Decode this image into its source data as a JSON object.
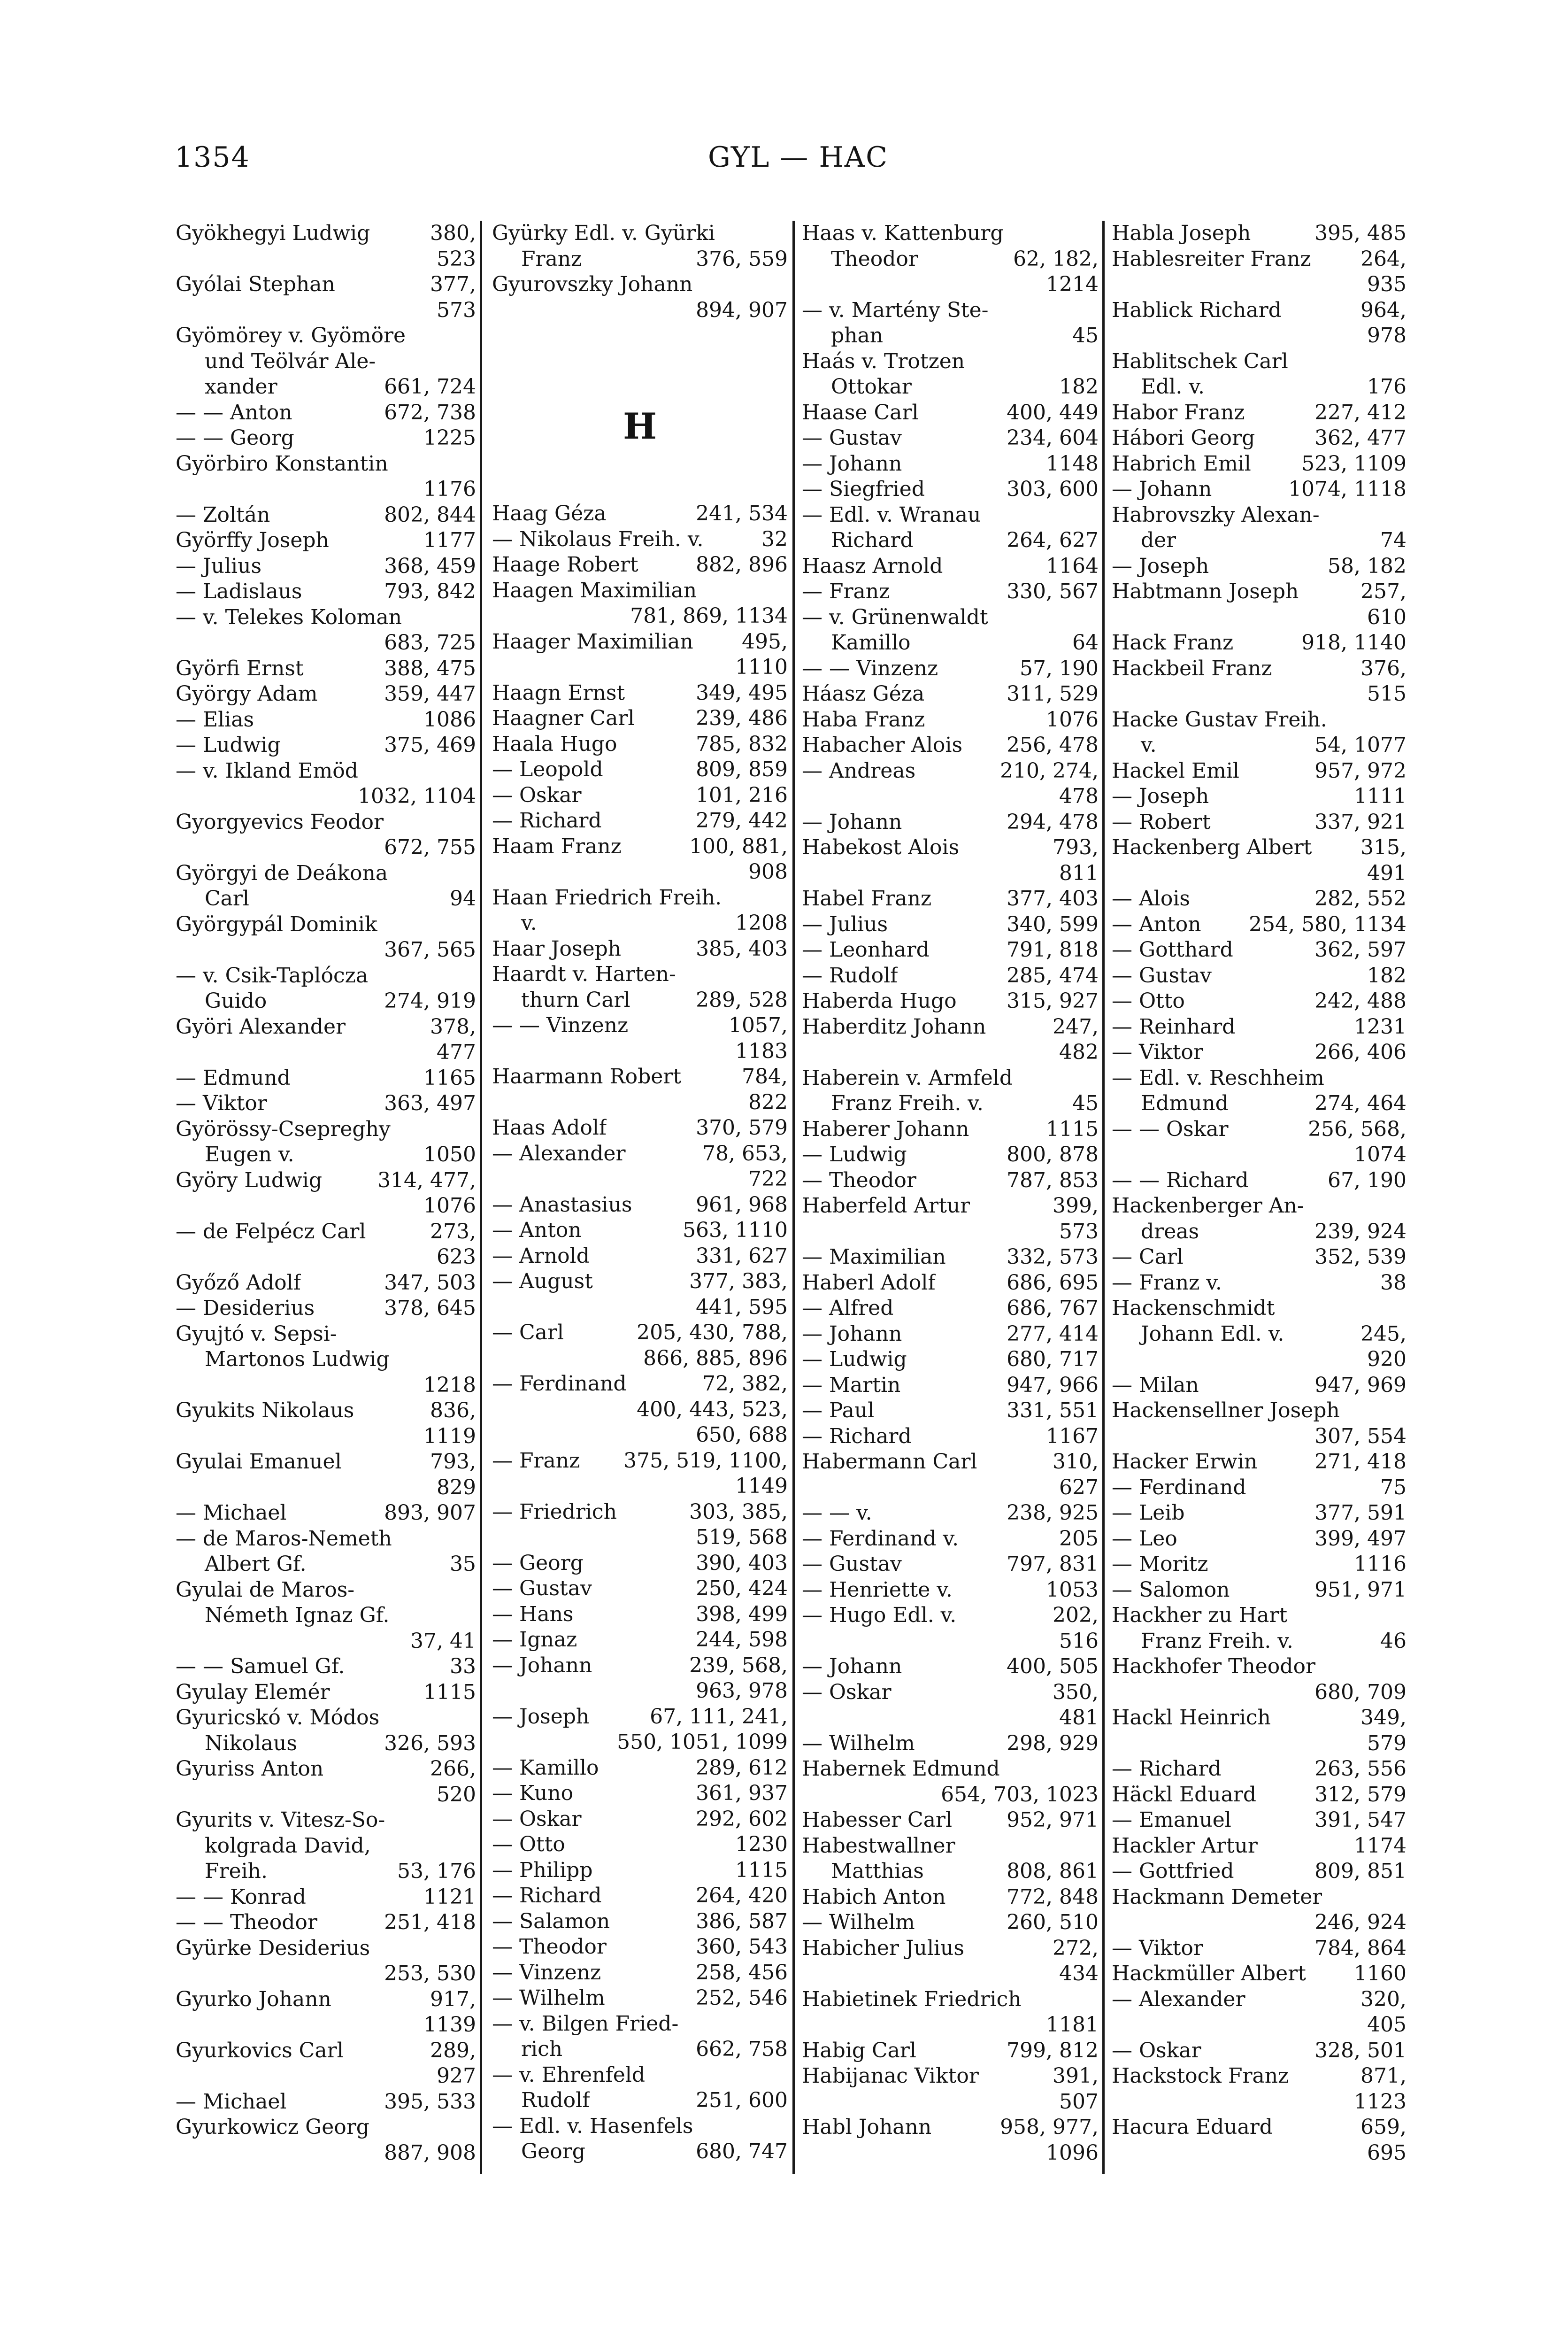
{
  "header": {
    "page_number": "1354",
    "running_head": "GYL — HAC"
  },
  "columns": [
    {
      "lines": [
        [
          "Gyökhegyi Ludwig",
          "380,"
        ],
        [
          "",
          "523"
        ],
        [
          "Gyólai Stephan",
          "377,"
        ],
        [
          "",
          "573"
        ],
        [
          "Gyömörey v. Gyömöre",
          ""
        ],
        [
          "und Teölvár Ale-",
          "",
          1
        ],
        [
          "xander",
          "661, 724",
          1
        ],
        [
          "— — Anton",
          "672, 738"
        ],
        [
          "— — Georg",
          "1225"
        ],
        [
          "Györbiro Konstantin",
          ""
        ],
        [
          "",
          "1176"
        ],
        [
          "— Zoltán",
          "802, 844"
        ],
        [
          "Györffy Joseph",
          "1177"
        ],
        [
          "— Julius",
          "368, 459"
        ],
        [
          "— Ladislaus",
          "793, 842"
        ],
        [
          "— v. Telekes Koloman",
          ""
        ],
        [
          "",
          "683, 725"
        ],
        [
          "Györfi Ernst",
          "388, 475"
        ],
        [
          "György Adam",
          "359, 447"
        ],
        [
          "— Elias",
          "1086"
        ],
        [
          "— Ludwig",
          "375, 469"
        ],
        [
          "— v. Ikland Emöd",
          ""
        ],
        [
          "",
          "1032, 1104"
        ],
        [
          "Gyorgyevics Feodor",
          ""
        ],
        [
          "",
          "672, 755"
        ],
        [
          "Györgyi de Deákona",
          ""
        ],
        [
          "Carl",
          "94",
          1
        ],
        [
          "Györgypál Dominik",
          ""
        ],
        [
          "",
          "367, 565"
        ],
        [
          "— v. Csik-Taplócza",
          ""
        ],
        [
          "Guido",
          "274, 919",
          1
        ],
        [
          "Györi Alexander",
          "378,"
        ],
        [
          "",
          "477"
        ],
        [
          "— Edmund",
          "1165"
        ],
        [
          "— Viktor",
          "363, 497"
        ],
        [
          "Györössy-Csepreghy",
          ""
        ],
        [
          "Eugen v.",
          "1050",
          1
        ],
        [
          "Györy Ludwig",
          "314, 477,"
        ],
        [
          "",
          "1076"
        ],
        [
          "— de Felpécz Carl",
          "273,"
        ],
        [
          "",
          "623"
        ],
        [
          "Győző Adolf",
          "347, 503"
        ],
        [
          "— Desiderius",
          "378, 645"
        ],
        [
          "Gyujtó v. Sepsi-",
          ""
        ],
        [
          "Martonos Ludwig",
          "",
          1
        ],
        [
          "",
          "1218"
        ],
        [
          "Gyukits Nikolaus",
          "836,"
        ],
        [
          "",
          "1119"
        ],
        [
          "Gyulai Emanuel",
          "793,"
        ],
        [
          "",
          "829"
        ],
        [
          "— Michael",
          "893, 907"
        ],
        [
          "— de Maros-Nemeth",
          ""
        ],
        [
          "Albert Gf.",
          "35",
          1
        ],
        [
          "Gyulai de Maros-",
          ""
        ],
        [
          "Németh Ignaz Gf.",
          "",
          1
        ],
        [
          "",
          "37, 41"
        ],
        [
          "— — Samuel Gf.",
          "33"
        ],
        [
          "Gyulay Elemér",
          "1115"
        ],
        [
          "Gyuricskó v. Módos",
          ""
        ],
        [
          "Nikolaus",
          "326, 593",
          1
        ],
        [
          "Gyuriss Anton",
          "266,"
        ],
        [
          "",
          "520"
        ],
        [
          "Gyurits v. Vitesz-So-",
          ""
        ],
        [
          "kolgrada David,",
          "",
          1
        ],
        [
          "Freih.",
          "53, 176",
          1
        ],
        [
          "— — Konrad",
          "1121"
        ],
        [
          "— — Theodor",
          "251, 418"
        ],
        [
          "Gyürke Desiderius",
          ""
        ],
        [
          "",
          "253, 530"
        ],
        [
          "Gyurko Johann",
          "917,"
        ],
        [
          "",
          "1139"
        ],
        [
          "Gyurkovics Carl",
          "289,"
        ],
        [
          "",
          "927"
        ],
        [
          "— Michael",
          "395, 533"
        ],
        [
          "Gyurkowicz Georg",
          ""
        ],
        [
          "",
          "887, 908"
        ]
      ]
    },
    {
      "lines": [
        [
          "Gyürky Edl. v. Gyürki",
          ""
        ],
        [
          "Franz",
          "376, 559",
          1
        ],
        [
          "Gyurovszky Johann",
          ""
        ],
        [
          "",
          "894, 907"
        ]
      ],
      "section": "H",
      "lines2": [
        [
          "Haag Géza",
          "241, 534"
        ],
        [
          "— Nikolaus Freih. v.",
          "32"
        ],
        [
          "Haage Robert",
          "882, 896"
        ],
        [
          "Haagen Maximilian",
          ""
        ],
        [
          "",
          "781, 869, 1134"
        ],
        [
          "Haager Maximilian",
          "495,"
        ],
        [
          "",
          "1110"
        ],
        [
          "Haagn Ernst",
          "349, 495"
        ],
        [
          "Haagner Carl",
          "239, 486"
        ],
        [
          "Haala Hugo",
          "785, 832"
        ],
        [
          "— Leopold",
          "809, 859"
        ],
        [
          "— Oskar",
          "101, 216"
        ],
        [
          "— Richard",
          "279, 442"
        ],
        [
          "Haam Franz",
          "100, 881,"
        ],
        [
          "",
          "908"
        ],
        [
          "Haan Friedrich Freih.",
          ""
        ],
        [
          "v.",
          "1208",
          1
        ],
        [
          "Haar Joseph",
          "385, 403"
        ],
        [
          "Haardt v. Harten-",
          ""
        ],
        [
          "thurn Carl",
          "289, 528",
          1
        ],
        [
          "— — Vinzenz",
          "1057,"
        ],
        [
          "",
          "1183"
        ],
        [
          "Haarmann Robert",
          "784,"
        ],
        [
          "",
          "822"
        ],
        [
          "Haas Adolf",
          "370, 579"
        ],
        [
          "— Alexander",
          "78, 653,"
        ],
        [
          "",
          "722"
        ],
        [
          "— Anastasius",
          "961, 968"
        ],
        [
          "— Anton",
          "563, 1110"
        ],
        [
          "— Arnold",
          "331, 627"
        ],
        [
          "— August",
          "377, 383,"
        ],
        [
          "",
          "441, 595"
        ],
        [
          "— Carl",
          "205, 430, 788,"
        ],
        [
          "",
          "866, 885, 896"
        ],
        [
          "— Ferdinand",
          "72, 382,"
        ],
        [
          "",
          "400, 443, 523,"
        ],
        [
          "",
          "650, 688"
        ],
        [
          "— Franz",
          "375, 519, 1100,"
        ],
        [
          "",
          "1149"
        ],
        [
          "— Friedrich",
          "303, 385,"
        ],
        [
          "",
          "519, 568"
        ],
        [
          "— Georg",
          "390, 403"
        ],
        [
          "— Gustav",
          "250, 424"
        ],
        [
          "— Hans",
          "398, 499"
        ],
        [
          "— Ignaz",
          "244, 598"
        ],
        [
          "— Johann",
          "239, 568,"
        ],
        [
          "",
          "963, 978"
        ],
        [
          "— Joseph",
          "67, 111, 241,"
        ],
        [
          "",
          "550, 1051, 1099"
        ],
        [
          "— Kamillo",
          "289, 612"
        ],
        [
          "— Kuno",
          "361, 937"
        ],
        [
          "— Oskar",
          "292, 602"
        ],
        [
          "— Otto",
          "1230"
        ],
        [
          "— Philipp",
          "1115"
        ],
        [
          "— Richard",
          "264, 420"
        ],
        [
          "— Salamon",
          "386, 587"
        ],
        [
          "— Theodor",
          "360, 543"
        ],
        [
          "— Vinzenz",
          "258, 456"
        ],
        [
          "— Wilhelm",
          "252, 546"
        ],
        [
          "— v. Bilgen Fried-",
          ""
        ],
        [
          "rich",
          "662, 758",
          1
        ],
        [
          "— v. Ehrenfeld",
          ""
        ],
        [
          "Rudolf",
          "251, 600",
          1
        ],
        [
          "— Edl. v. Hasenfels",
          ""
        ],
        [
          "Georg",
          "680, 747",
          1
        ]
      ]
    },
    {
      "lines": [
        [
          "Haas v. Kattenburg",
          ""
        ],
        [
          "Theodor",
          "62, 182,",
          1
        ],
        [
          "",
          "1214"
        ],
        [
          "— v. Martény Ste-",
          ""
        ],
        [
          "phan",
          "45",
          1
        ],
        [
          "Haás v. Trotzen",
          ""
        ],
        [
          "Ottokar",
          "182",
          1
        ],
        [
          "Haase Carl",
          "400, 449"
        ],
        [
          "— Gustav",
          "234, 604"
        ],
        [
          "— Johann",
          "1148"
        ],
        [
          "— Siegfried",
          "303, 600"
        ],
        [
          "— Edl. v. Wranau",
          ""
        ],
        [
          "Richard",
          "264, 627",
          1
        ],
        [
          "Haasz Arnold",
          "1164"
        ],
        [
          "— Franz",
          "330, 567"
        ],
        [
          "— v. Grünenwaldt",
          ""
        ],
        [
          "Kamillo",
          "64",
          1
        ],
        [
          "— — Vinzenz",
          "57, 190"
        ],
        [
          "Háasz Géza",
          "311, 529"
        ],
        [
          "Haba Franz",
          "1076"
        ],
        [
          "Habacher Alois",
          "256, 478"
        ],
        [
          "— Andreas",
          "210, 274,"
        ],
        [
          "",
          "478"
        ],
        [
          "— Johann",
          "294, 478"
        ],
        [
          "Habekost Alois",
          "793,"
        ],
        [
          "",
          "811"
        ],
        [
          "Habel Franz",
          "377, 403"
        ],
        [
          "— Julius",
          "340, 599"
        ],
        [
          "— Leonhard",
          "791, 818"
        ],
        [
          "— Rudolf",
          "285, 474"
        ],
        [
          "Haberda Hugo",
          "315, 927"
        ],
        [
          "Haberditz Johann",
          "247,"
        ],
        [
          "",
          "482"
        ],
        [
          "Haberein v. Armfeld",
          ""
        ],
        [
          "Franz Freih. v.",
          "45",
          1
        ],
        [
          "Haberer Johann",
          "1115"
        ],
        [
          "— Ludwig",
          "800, 878"
        ],
        [
          "— Theodor",
          "787, 853"
        ],
        [
          "Haberfeld Artur",
          "399,"
        ],
        [
          "",
          "573"
        ],
        [
          "— Maximilian",
          "332, 573"
        ],
        [
          "Haberl Adolf",
          "686, 695"
        ],
        [
          "— Alfred",
          "686, 767"
        ],
        [
          "— Johann",
          "277, 414"
        ],
        [
          "— Ludwig",
          "680, 717"
        ],
        [
          "— Martin",
          "947, 966"
        ],
        [
          "— Paul",
          "331, 551"
        ],
        [
          "— Richard",
          "1167"
        ],
        [
          "Habermann Carl",
          "310,"
        ],
        [
          "",
          "627"
        ],
        [
          "— — v.",
          "238, 925"
        ],
        [
          "— Ferdinand v.",
          "205"
        ],
        [
          "— Gustav",
          "797, 831"
        ],
        [
          "— Henriette v.",
          "1053"
        ],
        [
          "— Hugo Edl. v.",
          "202,"
        ],
        [
          "",
          "516"
        ],
        [
          "— Johann",
          "400, 505"
        ],
        [
          "— Oskar",
          "350,"
        ],
        [
          "",
          "481"
        ],
        [
          "— Wilhelm",
          "298, 929"
        ],
        [
          "Habernek Edmund",
          ""
        ],
        [
          "",
          "654, 703, 1023"
        ],
        [
          "Habesser Carl",
          "952, 971"
        ],
        [
          "Habestwallner",
          ""
        ],
        [
          "Matthias",
          "808, 861",
          1
        ],
        [
          "Habich Anton",
          "772, 848"
        ],
        [
          "— Wilhelm",
          "260, 510"
        ],
        [
          "Habicher Julius",
          "272,"
        ],
        [
          "",
          "434"
        ],
        [
          "Habietinek Friedrich",
          ""
        ],
        [
          "",
          "1181"
        ],
        [
          "Habig Carl",
          "799, 812"
        ],
        [
          "Habijanac Viktor",
          "391,"
        ],
        [
          "",
          "507"
        ],
        [
          "Habl Johann",
          "958, 977,"
        ],
        [
          "",
          "1096"
        ]
      ]
    },
    {
      "lines": [
        [
          "Habla Joseph",
          "395, 485"
        ],
        [
          "Hablesreiter Franz",
          "264,"
        ],
        [
          "",
          "935"
        ],
        [
          "Hablick Richard",
          "964,"
        ],
        [
          "",
          "978"
        ],
        [
          "Hablitschek Carl",
          ""
        ],
        [
          "Edl. v.",
          "176",
          1
        ],
        [
          "Habor Franz",
          "227, 412"
        ],
        [
          "Hábori Georg",
          "362, 477"
        ],
        [
          "Habrich Emil",
          "523, 1109"
        ],
        [
          "— Johann",
          "1074, 1118"
        ],
        [
          "Habrovszky Alexan-",
          ""
        ],
        [
          "der",
          "74",
          1
        ],
        [
          "— Joseph",
          "58, 182"
        ],
        [
          "Habtmann Joseph",
          "257,"
        ],
        [
          "",
          "610"
        ],
        [
          "Hack Franz",
          "918, 1140"
        ],
        [
          "Hackbeil Franz",
          "376,"
        ],
        [
          "",
          "515"
        ],
        [
          "Hacke Gustav Freih.",
          ""
        ],
        [
          "v.",
          "54, 1077",
          1
        ],
        [
          "Hackel Emil",
          "957, 972"
        ],
        [
          "— Joseph",
          "1111"
        ],
        [
          "— Robert",
          "337, 921"
        ],
        [
          "Hackenberg Albert",
          "315,"
        ],
        [
          "",
          "491"
        ],
        [
          "— Alois",
          "282, 552"
        ],
        [
          "— Anton",
          "254, 580, 1134"
        ],
        [
          "— Gotthard",
          "362, 597"
        ],
        [
          "— Gustav",
          "182"
        ],
        [
          "— Otto",
          "242, 488"
        ],
        [
          "— Reinhard",
          "1231"
        ],
        [
          "— Viktor",
          "266, 406"
        ],
        [
          "— Edl. v. Reschheim",
          ""
        ],
        [
          "Edmund",
          "274, 464",
          1
        ],
        [
          "— — Oskar",
          "256, 568,"
        ],
        [
          "",
          "1074"
        ],
        [
          "— — Richard",
          "67, 190"
        ],
        [
          "Hackenberger An-",
          ""
        ],
        [
          "dreas",
          "239, 924",
          1
        ],
        [
          "— Carl",
          "352, 539"
        ],
        [
          "— Franz v.",
          "38"
        ],
        [
          "Hackenschmidt",
          ""
        ],
        [
          "Johann Edl. v.",
          "245,",
          1
        ],
        [
          "",
          "920"
        ],
        [
          "— Milan",
          "947, 969"
        ],
        [
          "Hackensellner Joseph",
          ""
        ],
        [
          "",
          "307, 554"
        ],
        [
          "Hacker Erwin",
          "271, 418"
        ],
        [
          "— Ferdinand",
          "75"
        ],
        [
          "— Leib",
          "377, 591"
        ],
        [
          "— Leo",
          "399, 497"
        ],
        [
          "— Moritz",
          "1116"
        ],
        [
          "— Salomon",
          "951, 971"
        ],
        [
          "Hackher zu Hart",
          ""
        ],
        [
          "Franz Freih. v.",
          "46",
          1
        ],
        [
          "Hackhofer Theodor",
          ""
        ],
        [
          "",
          "680, 709"
        ],
        [
          "Hackl Heinrich",
          "349,"
        ],
        [
          "",
          "579"
        ],
        [
          "— Richard",
          "263, 556"
        ],
        [
          "Häckl Eduard",
          "312, 579"
        ],
        [
          "— Emanuel",
          "391, 547"
        ],
        [
          "Hackler Artur",
          "1174"
        ],
        [
          "— Gottfried",
          "809, 851"
        ],
        [
          "Hackmann Demeter",
          ""
        ],
        [
          "",
          "246, 924"
        ],
        [
          "— Viktor",
          "784, 864"
        ],
        [
          "Hackmüller Albert",
          "1160"
        ],
        [
          "— Alexander",
          "320,"
        ],
        [
          "",
          "405"
        ],
        [
          "— Oskar",
          "328, 501"
        ],
        [
          "Hackstock Franz",
          "871,"
        ],
        [
          "",
          "1123"
        ],
        [
          "Hacura Eduard",
          "659,"
        ],
        [
          "",
          "695"
        ]
      ]
    }
  ]
}
